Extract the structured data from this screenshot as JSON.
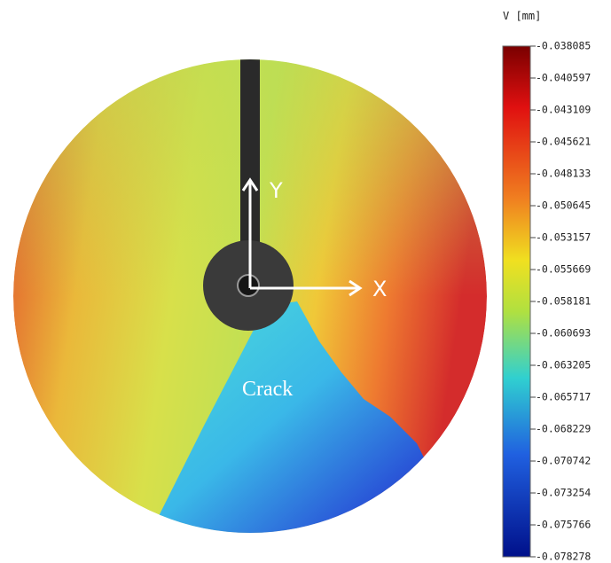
{
  "colorbar": {
    "title": "V [mm]",
    "ticks": [
      -0.038085,
      -0.040597,
      -0.043109,
      -0.045621,
      -0.048133,
      -0.050645,
      -0.053157,
      -0.055669,
      -0.058181,
      -0.060693,
      -0.063205,
      -0.065717,
      -0.068229,
      -0.070742,
      -0.073254,
      -0.075766,
      -0.078278
    ]
  },
  "annotations": {
    "y_axis": "Y",
    "x_axis": "X",
    "crack": "Crack"
  }
}
